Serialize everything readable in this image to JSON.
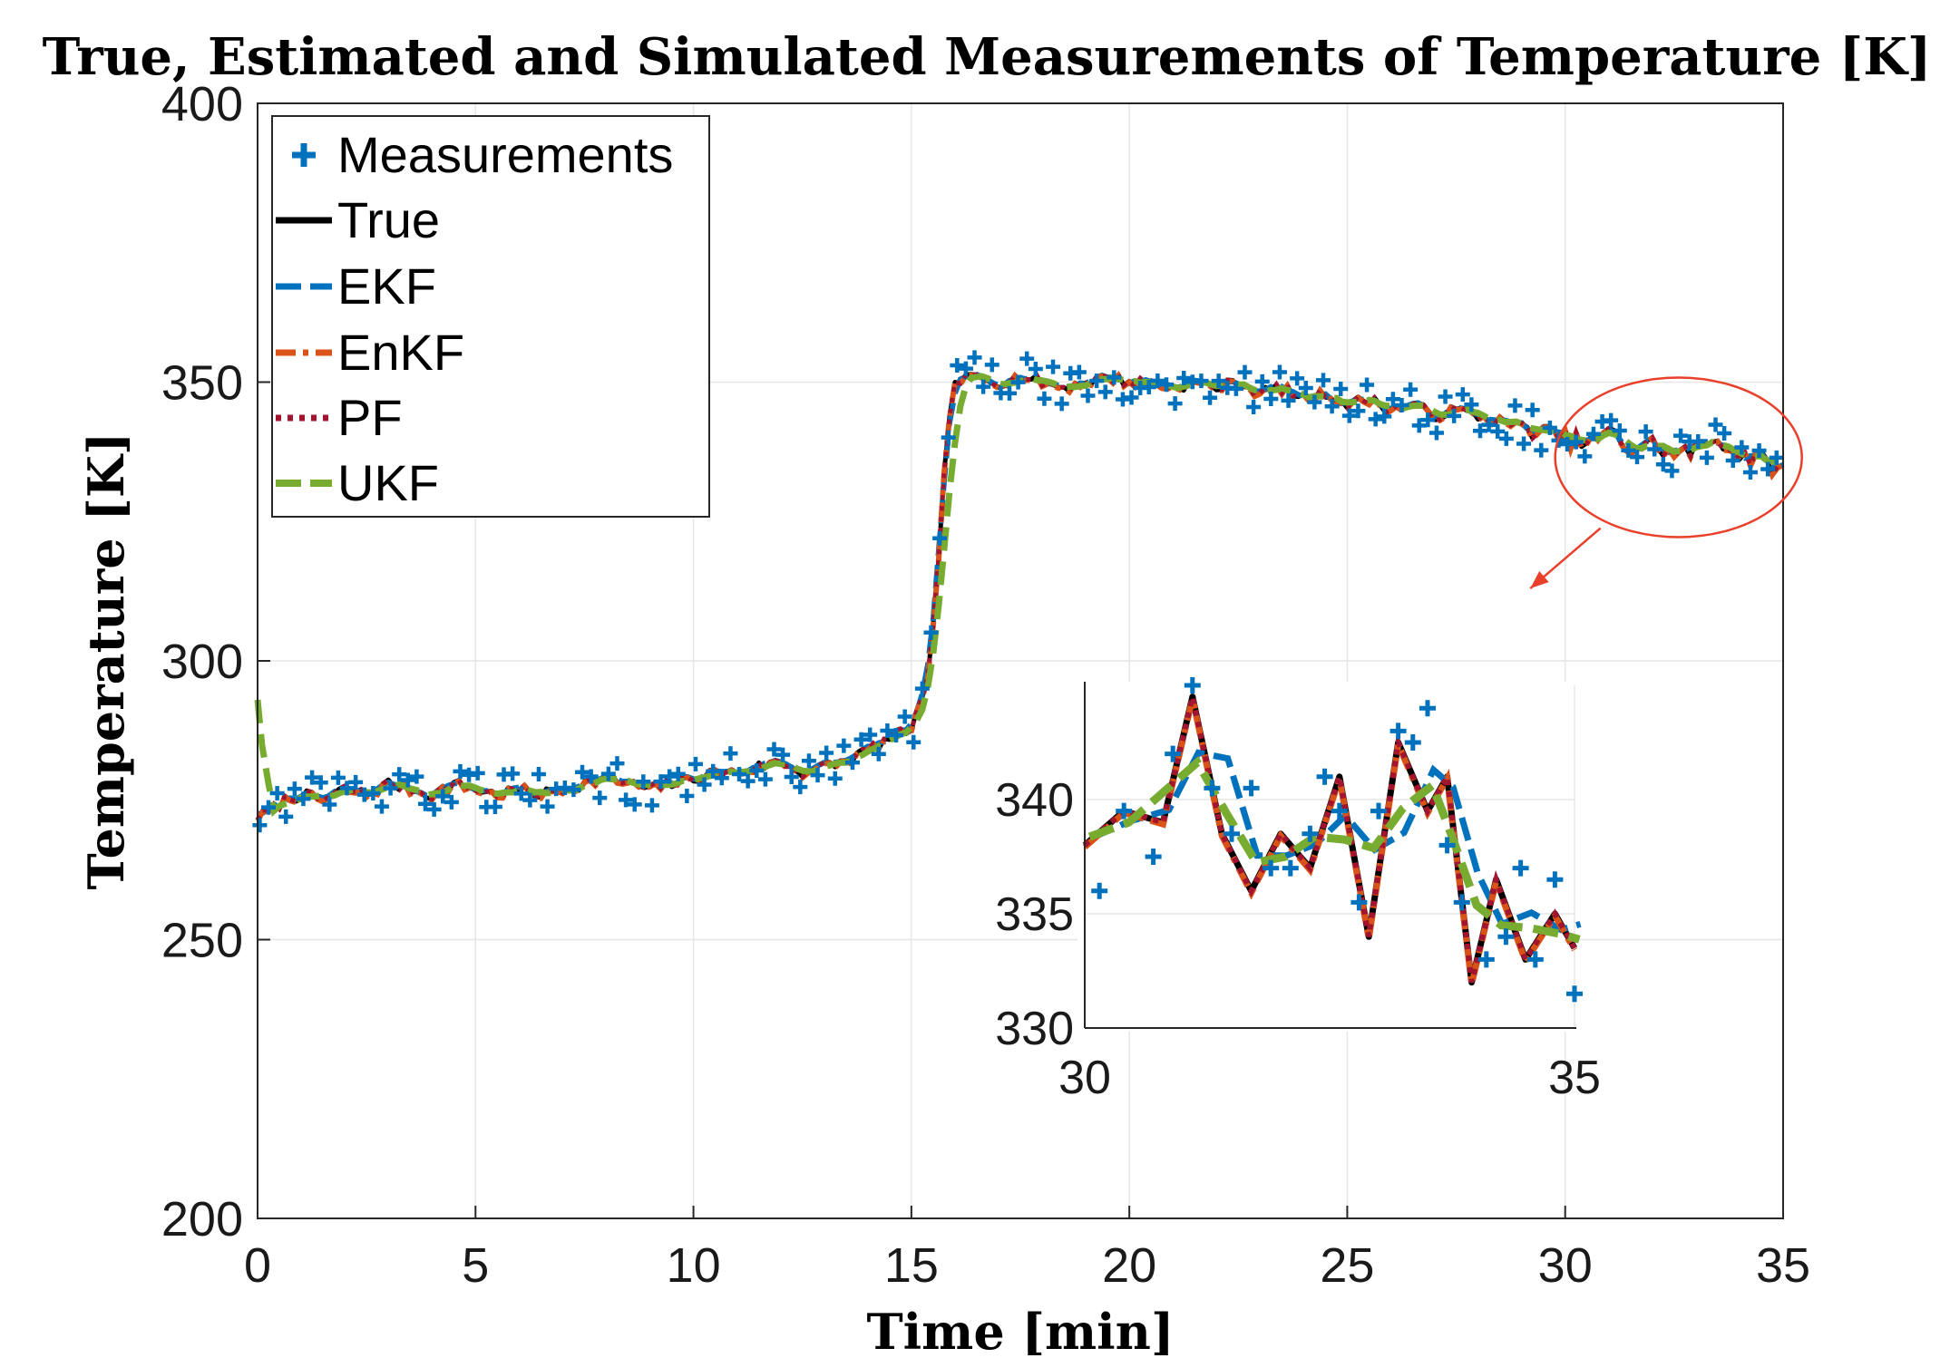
{
  "chart_data": {
    "type": "line",
    "title": "True, Estimated and Simulated Measurements of Temperature [K]",
    "xlabel": "Time [min]",
    "ylabel": "Temperature [K]",
    "xlim": [
      0,
      35
    ],
    "ylim": [
      200,
      400
    ],
    "xticks": [
      0,
      5,
      10,
      15,
      20,
      25,
      30,
      35
    ],
    "yticks": [
      200,
      250,
      300,
      350,
      400
    ],
    "grid": true,
    "legend_position": "top-left",
    "legend": [
      "Measurements",
      "True",
      "EKF",
      "EnKF",
      "PF",
      "UKF"
    ],
    "colors": {
      "measurements": "#0072BD",
      "true": "#000000",
      "ekf": "#0072BD",
      "enkf": "#D95319",
      "pf": "#A2142F",
      "ukf": "#77AC30",
      "annotation": "#E8402A"
    },
    "true_series": {
      "x": [
        0,
        0.3,
        0.6,
        1,
        1.5,
        2,
        2.5,
        3,
        3.5,
        4,
        4.5,
        5,
        5.5,
        6,
        6.5,
        7,
        7.5,
        8,
        8.5,
        9,
        9.5,
        10,
        10.5,
        11,
        11.5,
        12,
        12.5,
        13,
        13.5,
        14,
        14.5,
        15,
        15.2,
        15.4,
        15.6,
        15.8,
        16,
        16.5,
        17,
        17.5,
        18,
        18.5,
        19,
        19.5,
        20,
        20.5,
        21,
        21.5,
        22,
        22.5,
        23,
        23.5,
        24,
        24.5,
        25,
        25.5,
        26,
        26.5,
        27,
        27.5,
        28,
        28.5,
        29,
        29.5,
        30,
        30.5,
        31,
        31.5,
        32,
        32.5,
        33,
        33.5,
        34,
        34.5,
        35
      ],
      "y": [
        272,
        273,
        275,
        276,
        275,
        277,
        276,
        278,
        277,
        276,
        278,
        277,
        276,
        277,
        276,
        277,
        278,
        279,
        278,
        277,
        278,
        279,
        280,
        280,
        281,
        282,
        280,
        281,
        282,
        284,
        286,
        288,
        292,
        298,
        315,
        340,
        350,
        351,
        350,
        351,
        350,
        349,
        350,
        351,
        350,
        350,
        349,
        350,
        349,
        350,
        348,
        349,
        347,
        348,
        346,
        347,
        345,
        346,
        344,
        345,
        344,
        343,
        342,
        341,
        340,
        339,
        341,
        338,
        339,
        337,
        338,
        340,
        337,
        336,
        334
      ]
    },
    "ukf_start": [
      [
        0,
        293
      ],
      [
        0.1,
        285
      ],
      [
        0.25,
        278
      ]
    ],
    "measurement_seed": 7,
    "annotation": {
      "type": "zoom-callout",
      "circle_center": [
        32.6,
        336.5
      ],
      "arrow_to": [
        29.2,
        313
      ]
    },
    "inset": {
      "xlim": [
        30,
        35
      ],
      "ylim": [
        330,
        345
      ],
      "xticks": [
        30,
        35
      ],
      "yticks": [
        330,
        335,
        340
      ],
      "true_series": {
        "x": [
          30,
          30.4,
          30.8,
          31.1,
          31.4,
          31.7,
          32.0,
          32.3,
          32.6,
          32.9,
          33.2,
          33.5,
          33.7,
          33.95,
          34.2,
          34.5,
          34.8,
          35
        ],
        "y": [
          338,
          339.5,
          339,
          344.5,
          338.5,
          336,
          338.5,
          337,
          341,
          334,
          342.5,
          339.5,
          341,
          332,
          336.5,
          333,
          335,
          333.5
        ]
      },
      "measurements": {
        "x": [
          30.15,
          30.4,
          30.7,
          30.9,
          31.1,
          31.3,
          31.5,
          31.7,
          31.9,
          32.1,
          32.3,
          32.45,
          32.6,
          32.8,
          33.0,
          33.2,
          33.35,
          33.5,
          33.7,
          33.85,
          34.1,
          34.3,
          34.45,
          34.6,
          34.8,
          35.0
        ],
        "y": [
          336,
          339.5,
          337.5,
          342,
          345,
          340.5,
          338.5,
          340.5,
          337,
          337,
          338.5,
          341,
          339.5,
          335.5,
          339.5,
          343,
          342.5,
          344,
          338,
          335.5,
          333,
          334,
          337,
          333,
          336.5,
          331.5
        ]
      }
    }
  }
}
